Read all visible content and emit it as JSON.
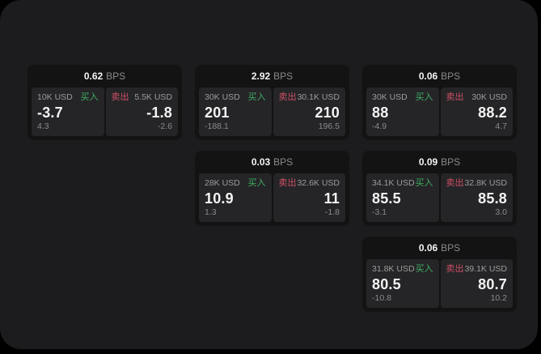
{
  "labels": {
    "bps": "BPS",
    "buy": "买入",
    "sell": "卖出"
  },
  "colors": {
    "page_bg": "#000000",
    "panel_bg": "#1c1c1e",
    "card_bg": "#131313",
    "tile_bg": "#252527",
    "text_white": "#f4f4f4",
    "text_gray": "#9c9c9c",
    "sub_gray": "#8b8b8b",
    "bps_gray": "#8a8a8a",
    "buy_green": "#3fae63",
    "sell_red": "#cd5065"
  },
  "cards": [
    {
      "bps": "0.62",
      "row": 1,
      "col": 1,
      "buy": {
        "amount": "10K USD",
        "value": "-3.7",
        "delta": "4.3"
      },
      "sell": {
        "amount": "5.5K USD",
        "value": "-1.8",
        "delta": "-2.6"
      }
    },
    {
      "bps": "2.92",
      "row": 1,
      "col": 2,
      "buy": {
        "amount": "30K USD",
        "value": "201",
        "delta": "-188.1"
      },
      "sell": {
        "amount": "30.1K USD",
        "value": "210",
        "delta": "196.5"
      }
    },
    {
      "bps": "0.06",
      "row": 1,
      "col": 3,
      "buy": {
        "amount": "30K USD",
        "value": "88",
        "delta": "-4.9"
      },
      "sell": {
        "amount": "30K USD",
        "value": "88.2",
        "delta": "4.7"
      }
    },
    {
      "bps": "0.03",
      "row": 2,
      "col": 2,
      "buy": {
        "amount": "28K USD",
        "value": "10.9",
        "delta": "1.3"
      },
      "sell": {
        "amount": "32.6K USD",
        "value": "11",
        "delta": "-1.8"
      }
    },
    {
      "bps": "0.09",
      "row": 2,
      "col": 3,
      "buy": {
        "amount": "34.1K USD",
        "value": "85.5",
        "delta": "-3.1"
      },
      "sell": {
        "amount": "32.8K USD",
        "value": "85.8",
        "delta": "3.0"
      }
    },
    {
      "bps": "0.06",
      "row": 3,
      "col": 3,
      "buy": {
        "amount": "31.8K USD",
        "value": "80.5",
        "delta": "-10.8"
      },
      "sell": {
        "amount": "39.1K USD",
        "value": "80.7",
        "delta": "10.2"
      }
    }
  ]
}
